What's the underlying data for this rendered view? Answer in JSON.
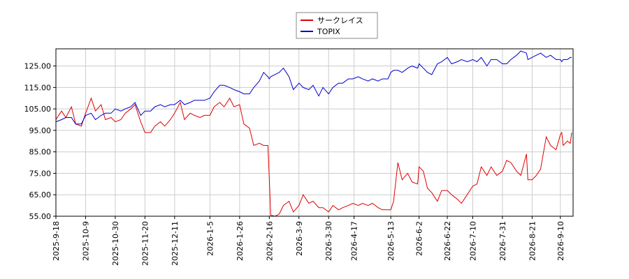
{
  "chart_data": {
    "type": "line",
    "x": [
      "2025-9-18",
      "2025-9-22",
      "2025-9-25",
      "2025-9-29",
      "2025-10-2",
      "2025-10-6",
      "2025-10-9",
      "2025-10-13",
      "2025-10-16",
      "2025-10-20",
      "2025-10-23",
      "2025-10-27",
      "2025-10-30",
      "2025-11-3",
      "2025-11-6",
      "2025-11-10",
      "2025-11-13",
      "2025-11-17",
      "2025-11-20",
      "2025-11-24",
      "2025-11-27",
      "2025-12-1",
      "2025-12-4",
      "2025-12-8",
      "2025-12-11",
      "2025-12-15",
      "2025-12-18",
      "2025-12-22",
      "2025-12-25",
      "2025-12-29",
      "2026-1-1",
      "2026-1-5",
      "2026-1-8",
      "2026-1-12",
      "2026-1-15",
      "2026-1-19",
      "2026-1-22",
      "2026-1-26",
      "2026-1-29",
      "2026-2-2",
      "2026-2-5",
      "2026-2-9",
      "2026-2-12",
      "2026-2-15",
      "2026-2-16",
      "2026-2-17",
      "2026-2-20",
      "2026-2-23",
      "2026-2-26",
      "2026-3-2",
      "2026-3-5",
      "2026-3-9",
      "2026-3-12",
      "2026-3-16",
      "2026-3-19",
      "2026-3-23",
      "2026-3-26",
      "2026-3-30",
      "2026-4-2",
      "2026-4-6",
      "2026-4-9",
      "2026-4-13",
      "2026-4-16",
      "2026-4-20",
      "2026-4-23",
      "2026-4-27",
      "2026-4-30",
      "2026-5-4",
      "2026-5-7",
      "2026-5-11",
      "2026-5-13",
      "2026-5-15",
      "2026-5-18",
      "2026-5-21",
      "2026-5-25",
      "2026-5-28",
      "2026-6-1",
      "2026-6-2",
      "2026-6-5",
      "2026-6-8",
      "2026-6-11",
      "2026-6-15",
      "2026-6-18",
      "2026-6-22",
      "2026-6-25",
      "2026-6-29",
      "2026-7-2",
      "2026-7-6",
      "2026-7-10",
      "2026-7-13",
      "2026-7-16",
      "2026-7-20",
      "2026-7-23",
      "2026-7-27",
      "2026-7-31",
      "2026-8-3",
      "2026-8-6",
      "2026-8-10",
      "2026-8-13",
      "2026-8-17",
      "2026-8-18",
      "2026-8-21",
      "2026-8-24",
      "2026-8-27",
      "2026-8-31",
      "2026-9-3",
      "2026-9-7",
      "2026-9-10",
      "2026-9-11",
      "2026-9-12",
      "2026-9-15",
      "2026-9-17",
      "2026-9-18"
    ],
    "series": [
      {
        "name": "サークレイス",
        "color": "#e00000",
        "values": [
          100,
          104,
          101,
          106,
          98,
          97,
          103,
          110,
          104,
          107,
          100,
          101,
          99,
          100,
          103,
          105,
          107,
          99,
          94,
          94,
          97,
          99,
          97,
          100,
          103,
          108,
          100,
          103,
          102,
          101,
          102,
          102,
          106,
          108,
          106,
          110,
          106,
          107,
          98,
          96,
          88,
          89,
          88,
          88,
          73,
          55.5,
          55,
          56,
          60,
          62,
          57,
          60,
          65,
          61,
          62,
          59,
          59,
          57,
          60,
          58,
          59,
          60,
          61,
          60,
          61,
          60,
          61,
          59,
          58,
          58,
          58,
          62,
          80,
          72,
          75,
          71,
          70,
          78,
          76,
          68,
          66,
          62,
          67,
          67,
          65,
          63,
          61,
          65,
          69,
          70,
          78,
          74,
          78,
          74,
          76,
          81,
          80,
          76,
          74,
          84,
          72,
          72,
          74,
          77,
          92,
          88,
          86,
          93,
          94,
          88,
          90,
          89,
          94
        ]
      },
      {
        "name": "TOPIX",
        "color": "#0000cc",
        "values": [
          99,
          100,
          101,
          101,
          98,
          98,
          102,
          103,
          100,
          102,
          103,
          103,
          105,
          104,
          105,
          106,
          108,
          102,
          104,
          104,
          106,
          107,
          106,
          107,
          107,
          109,
          107,
          108,
          109,
          109,
          109,
          110,
          113,
          116,
          116,
          115,
          114,
          113,
          112,
          112,
          115,
          118,
          122,
          120,
          119,
          120,
          121,
          122,
          124,
          120,
          114,
          117,
          115,
          114,
          116,
          111,
          115,
          112,
          115,
          117,
          117,
          119,
          119,
          120,
          119,
          118,
          119,
          118,
          119,
          119,
          122,
          123,
          123,
          122,
          124,
          125,
          124,
          126,
          124,
          122,
          121,
          126,
          127,
          129,
          126,
          127,
          128,
          127,
          128,
          127,
          129,
          125,
          128,
          128,
          126,
          126,
          128,
          130,
          132,
          131,
          128,
          129,
          130,
          131,
          129,
          130,
          128,
          128,
          127,
          128,
          128,
          129,
          129
        ]
      }
    ],
    "xlim": [
      "2025-9-18",
      "2026-9-19"
    ],
    "xticks": [
      "2025-9-18",
      "2025-10-9",
      "2025-10-30",
      "2025-11-20",
      "2025-12-11",
      "2026-1-5",
      "2026-1-26",
      "2026-2-16",
      "2026-3-9",
      "2026-3-30",
      "2026-4-17",
      "2026-5-13",
      "2026-6-2",
      "2026-6-22",
      "2026-7-10",
      "2026-7-31",
      "2026-8-21",
      "2026-9-10"
    ],
    "ylim": [
      55,
      133
    ],
    "yticks": [
      {
        "value": 55,
        "label": "55.00"
      },
      {
        "value": 65,
        "label": "65.00"
      },
      {
        "value": 75,
        "label": "75.00"
      },
      {
        "value": 85,
        "label": "85.00"
      },
      {
        "value": 95,
        "label": "95.00"
      },
      {
        "value": 105,
        "label": "105.00"
      },
      {
        "value": 115,
        "label": "115.00"
      },
      {
        "value": 125,
        "label": "125.00"
      }
    ],
    "grid": true,
    "legend": "top"
  }
}
